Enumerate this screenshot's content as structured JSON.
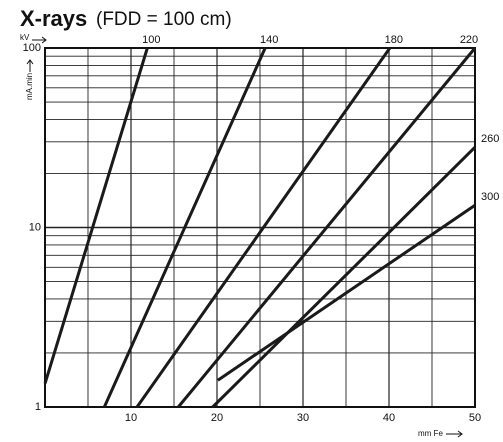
{
  "chart_data": {
    "type": "line",
    "title": "X-rays",
    "subtitle": "(FDD = 100 cm)",
    "legend_title": "kV",
    "ylabel": "mA.min",
    "xlabel": "mm Fe",
    "xlim": [
      0,
      50
    ],
    "xticks": [
      10,
      20,
      30,
      40,
      50
    ],
    "xminor_ticks": [
      5,
      15,
      25,
      35,
      45
    ],
    "ylim": [
      1,
      100
    ],
    "yticks": [
      1,
      10,
      100
    ],
    "ylog": true,
    "yminor_ticks": [
      2,
      3,
      4,
      5,
      6,
      7,
      8,
      9,
      20,
      30,
      40,
      50,
      60,
      70,
      80,
      90
    ],
    "grid": true,
    "color": "#1a1a1a",
    "series": [
      {
        "name": "100",
        "x": [
          0,
          11.9
        ],
        "values": [
          1.35,
          100
        ]
      },
      {
        "name": "140",
        "x": [
          6.9,
          25.6
        ],
        "values": [
          1,
          100
        ]
      },
      {
        "name": "180",
        "x": [
          10.7,
          40.1
        ],
        "values": [
          1,
          100
        ]
      },
      {
        "name": "220",
        "x": [
          15.5,
          50
        ],
        "values": [
          1,
          100
        ]
      },
      {
        "name": "260",
        "x": [
          19.5,
          50
        ],
        "values": [
          1,
          28
        ]
      },
      {
        "name": "300",
        "x": [
          20.1,
          50
        ],
        "values": [
          1.41,
          13.3
        ]
      }
    ]
  }
}
